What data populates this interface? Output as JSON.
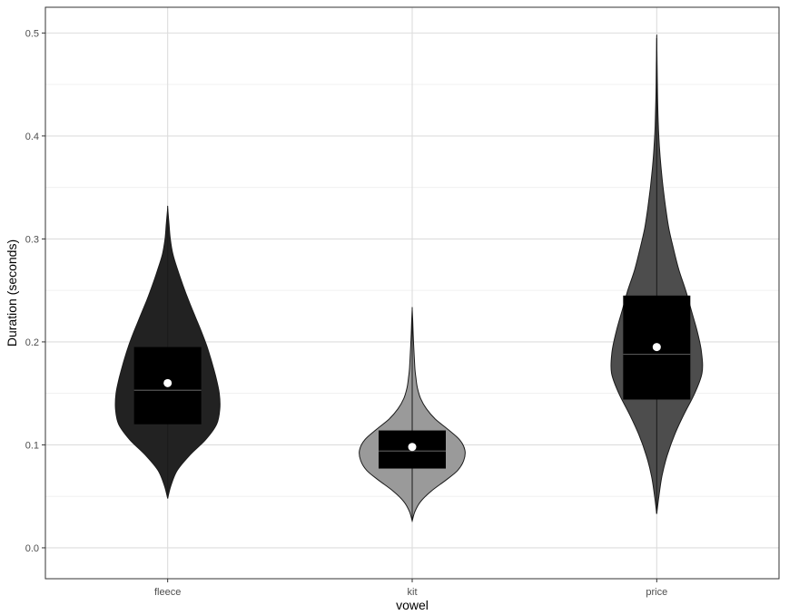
{
  "chart_data": {
    "type": "violin",
    "title": "",
    "xlabel": "vowel",
    "ylabel": "Duration (seconds)",
    "ylim": [
      -0.03,
      0.525
    ],
    "yticks": [
      0.0,
      0.1,
      0.2,
      0.3,
      0.4,
      0.5
    ],
    "ytick_labels": [
      "0.0",
      "0.1",
      "0.2",
      "0.3",
      "0.4",
      "0.5"
    ],
    "categories": [
      "fleece",
      "kit",
      "price"
    ],
    "grid": true,
    "legend": "none",
    "groups": [
      {
        "name": "fleece",
        "fill": "#222222",
        "min": 0.048,
        "max": 0.33,
        "q1": 0.12,
        "median": 0.153,
        "q3": 0.195,
        "mean": 0.16,
        "density": [
          [
            0.048,
            0
          ],
          [
            0.06,
            0.06
          ],
          [
            0.075,
            0.18
          ],
          [
            0.09,
            0.42
          ],
          [
            0.105,
            0.72
          ],
          [
            0.12,
            0.93
          ],
          [
            0.135,
            0.99
          ],
          [
            0.15,
            0.98
          ],
          [
            0.165,
            0.92
          ],
          [
            0.18,
            0.84
          ],
          [
            0.195,
            0.75
          ],
          [
            0.21,
            0.64
          ],
          [
            0.225,
            0.52
          ],
          [
            0.24,
            0.4
          ],
          [
            0.255,
            0.29
          ],
          [
            0.27,
            0.19
          ],
          [
            0.285,
            0.1
          ],
          [
            0.3,
            0.05
          ],
          [
            0.315,
            0.025
          ],
          [
            0.33,
            0
          ]
        ]
      },
      {
        "name": "kit",
        "fill": "#9a9a9a",
        "min": 0.026,
        "max": 0.232,
        "q1": 0.077,
        "median": 0.094,
        "q3": 0.114,
        "mean": 0.098,
        "density": [
          [
            0.026,
            0
          ],
          [
            0.035,
            0.05
          ],
          [
            0.045,
            0.16
          ],
          [
            0.055,
            0.36
          ],
          [
            0.065,
            0.62
          ],
          [
            0.075,
            0.86
          ],
          [
            0.085,
            0.98
          ],
          [
            0.095,
            1.0
          ],
          [
            0.105,
            0.9
          ],
          [
            0.115,
            0.68
          ],
          [
            0.125,
            0.44
          ],
          [
            0.135,
            0.27
          ],
          [
            0.145,
            0.16
          ],
          [
            0.155,
            0.1
          ],
          [
            0.165,
            0.07
          ],
          [
            0.175,
            0.05
          ],
          [
            0.19,
            0.035
          ],
          [
            0.205,
            0.02
          ],
          [
            0.22,
            0.01
          ],
          [
            0.232,
            0
          ]
        ]
      },
      {
        "name": "price",
        "fill": "#4d4d4d",
        "min": 0.033,
        "max": 0.495,
        "q1": 0.144,
        "median": 0.188,
        "q3": 0.245,
        "mean": 0.195,
        "density": [
          [
            0.033,
            0
          ],
          [
            0.05,
            0.04
          ],
          [
            0.07,
            0.1
          ],
          [
            0.09,
            0.2
          ],
          [
            0.11,
            0.34
          ],
          [
            0.13,
            0.52
          ],
          [
            0.15,
            0.72
          ],
          [
            0.17,
            0.86
          ],
          [
            0.19,
            0.85
          ],
          [
            0.21,
            0.77
          ],
          [
            0.23,
            0.66
          ],
          [
            0.25,
            0.55
          ],
          [
            0.27,
            0.42
          ],
          [
            0.29,
            0.32
          ],
          [
            0.31,
            0.23
          ],
          [
            0.33,
            0.17
          ],
          [
            0.35,
            0.12
          ],
          [
            0.37,
            0.08
          ],
          [
            0.39,
            0.05
          ],
          [
            0.41,
            0.03
          ],
          [
            0.44,
            0.015
          ],
          [
            0.47,
            0.007
          ],
          [
            0.495,
            0
          ]
        ]
      }
    ]
  }
}
